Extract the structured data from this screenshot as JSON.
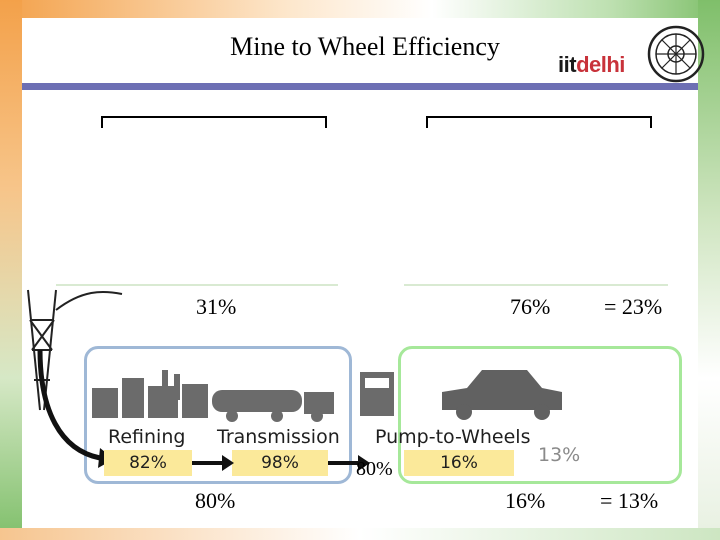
{
  "slide": {
    "title": "Mine to Wheel Efficiency",
    "logo": {
      "text_prefix": "iit",
      "text_accent": "delhi"
    }
  },
  "top_row": {
    "left_efficiency": "31%",
    "right_efficiency": "76%",
    "total": "= 23%"
  },
  "bottom_row": {
    "left_efficiency": "80%",
    "right_efficiency": "16%",
    "total": "= 13%"
  },
  "stages": [
    {
      "label": "Refining",
      "value": "82%"
    },
    {
      "label": "Transmission",
      "value": "98%"
    },
    {
      "label": "Pump-to-Wheels",
      "value": "16%"
    }
  ],
  "annotations": {
    "mid_value": "80%",
    "gray_value": "13%"
  },
  "colors": {
    "rule": "#6d6fb4",
    "left_box": "#9fb8d6",
    "right_box": "#a6e89a",
    "value_fill": "#fbe99a",
    "logo_accent": "#c8323a"
  }
}
